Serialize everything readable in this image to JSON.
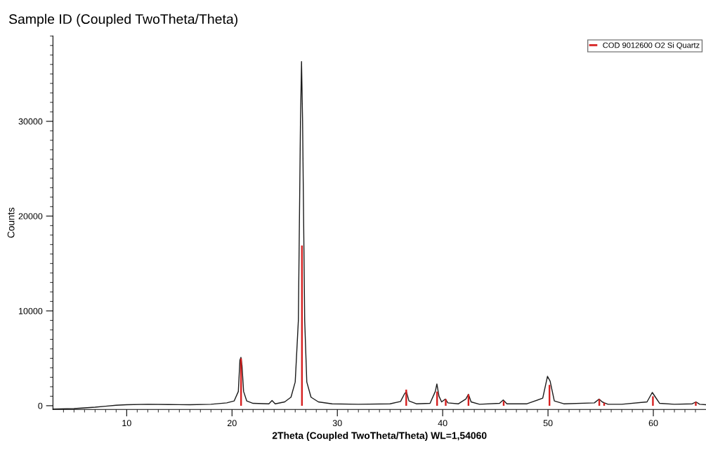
{
  "chart_data": {
    "type": "line",
    "title": "Sample ID (Coupled TwoTheta/Theta)",
    "xlabel": "2Theta (Coupled TwoTheta/Theta) WL=1,54060",
    "ylabel": "Counts",
    "xlim": [
      3,
      65
    ],
    "ylim": [
      -400,
      39000
    ],
    "xticks": [
      {
        "value": 4,
        "label": null
      },
      {
        "value": 5,
        "label": null
      },
      {
        "value": 6,
        "label": null
      },
      {
        "value": 7,
        "label": null
      },
      {
        "value": 8,
        "label": null
      },
      {
        "value": 9,
        "label": null
      },
      10,
      {
        "value": 11,
        "label": null
      },
      {
        "value": 12,
        "label": null
      },
      {
        "value": 13,
        "label": null
      },
      {
        "value": 14,
        "label": null
      },
      {
        "value": 15,
        "label": null
      },
      {
        "value": 16,
        "label": null
      },
      {
        "value": 17,
        "label": null
      },
      {
        "value": 18,
        "label": null
      },
      {
        "value": 19,
        "label": null
      },
      20,
      {
        "value": 21,
        "label": null
      },
      {
        "value": 22,
        "label": null
      },
      {
        "value": 23,
        "label": null
      },
      {
        "value": 24,
        "label": null
      },
      {
        "value": 25,
        "label": null
      },
      {
        "value": 26,
        "label": null
      },
      {
        "value": 27,
        "label": null
      },
      {
        "value": 28,
        "label": null
      },
      {
        "value": 29,
        "label": null
      },
      30,
      {
        "value": 31,
        "label": null
      },
      {
        "value": 32,
        "label": null
      },
      {
        "value": 33,
        "label": null
      },
      {
        "value": 34,
        "label": null
      },
      {
        "value": 35,
        "label": null
      },
      {
        "value": 36,
        "label": null
      },
      {
        "value": 37,
        "label": null
      },
      {
        "value": 38,
        "label": null
      },
      {
        "value": 39,
        "label": null
      },
      40,
      {
        "value": 41,
        "label": null
      },
      {
        "value": 42,
        "label": null
      },
      {
        "value": 43,
        "label": null
      },
      {
        "value": 44,
        "label": null
      },
      {
        "value": 45,
        "label": null
      },
      {
        "value": 46,
        "label": null
      },
      {
        "value": 47,
        "label": null
      },
      {
        "value": 48,
        "label": null
      },
      {
        "value": 49,
        "label": null
      },
      50,
      {
        "value": 51,
        "label": null
      },
      {
        "value": 52,
        "label": null
      },
      {
        "value": 53,
        "label": null
      },
      {
        "value": 54,
        "label": null
      },
      {
        "value": 55,
        "label": null
      },
      {
        "value": 56,
        "label": null
      },
      {
        "value": 57,
        "label": null
      },
      {
        "value": 58,
        "label": null
      },
      {
        "value": 59,
        "label": null
      },
      60,
      {
        "value": 61,
        "label": null
      },
      {
        "value": 62,
        "label": null
      },
      {
        "value": 63,
        "label": null
      },
      {
        "value": 64,
        "label": null
      }
    ],
    "yticks": [
      0,
      {
        "value": 1000,
        "label": null
      },
      {
        "value": 2000,
        "label": null
      },
      {
        "value": 3000,
        "label": null
      },
      {
        "value": 4000,
        "label": null
      },
      {
        "value": 5000,
        "label": null
      },
      {
        "value": 6000,
        "label": null
      },
      {
        "value": 7000,
        "label": null
      },
      {
        "value": 8000,
        "label": null
      },
      {
        "value": 9000,
        "label": null
      },
      10000,
      {
        "value": 11000,
        "label": null
      },
      {
        "value": 12000,
        "label": null
      },
      {
        "value": 13000,
        "label": null
      },
      {
        "value": 14000,
        "label": null
      },
      {
        "value": 15000,
        "label": null
      },
      {
        "value": 16000,
        "label": null
      },
      {
        "value": 17000,
        "label": null
      },
      {
        "value": 18000,
        "label": null
      },
      {
        "value": 19000,
        "label": null
      },
      20000,
      {
        "value": 21000,
        "label": null
      },
      {
        "value": 22000,
        "label": null
      },
      {
        "value": 23000,
        "label": null
      },
      {
        "value": 24000,
        "label": null
      },
      {
        "value": 25000,
        "label": null
      },
      {
        "value": 26000,
        "label": null
      },
      {
        "value": 27000,
        "label": null
      },
      {
        "value": 28000,
        "label": null
      },
      {
        "value": 29000,
        "label": null
      },
      30000,
      {
        "value": 31000,
        "label": null
      },
      {
        "value": 32000,
        "label": null
      },
      {
        "value": 33000,
        "label": null
      },
      {
        "value": 34000,
        "label": null
      },
      {
        "value": 35000,
        "label": null
      },
      {
        "value": 36000,
        "label": null
      },
      {
        "value": 37000,
        "label": null
      },
      {
        "value": 38000,
        "label": null
      },
      {
        "value": 39000,
        "label": null
      }
    ],
    "grid": false,
    "legend": "top right",
    "marker": "none",
    "line_style": "solid",
    "series": [
      {
        "color": "#1a1a1a",
        "x": [
          3,
          5,
          7,
          8,
          9,
          10,
          12,
          14,
          16,
          18,
          19.5,
          20.2,
          20.6,
          20.75,
          20.85,
          20.95,
          21.1,
          21.4,
          22,
          23.5,
          23.8,
          24.1,
          25,
          25.6,
          26.0,
          26.3,
          26.5,
          26.6,
          26.7,
          26.9,
          27.1,
          27.5,
          28.2,
          29.5,
          32,
          35,
          36,
          36.35,
          36.55,
          36.8,
          37.5,
          38.8,
          39.3,
          39.45,
          39.65,
          39.9,
          40.25,
          40.5,
          41.5,
          42.2,
          42.45,
          42.7,
          43.5,
          45.4,
          45.75,
          46.1,
          48,
          49.5,
          49.95,
          50.2,
          50.6,
          51.5,
          54.4,
          54.85,
          55.15,
          55.35,
          55.7,
          57,
          59.4,
          59.9,
          60.2,
          60.6,
          62,
          63.7,
          64.05,
          64.4,
          65
        ],
        "values": [
          -350,
          -300,
          -150,
          -50,
          50,
          100,
          150,
          120,
          100,
          150,
          300,
          500,
          1500,
          4800,
          5100,
          4200,
          1500,
          500,
          250,
          200,
          550,
          200,
          400,
          900,
          2500,
          9000,
          30000,
          36300,
          30000,
          9000,
          2500,
          900,
          400,
          200,
          150,
          200,
          450,
          1200,
          1500,
          500,
          200,
          250,
          1500,
          2300,
          1000,
          400,
          700,
          300,
          200,
          700,
          1200,
          400,
          150,
          250,
          600,
          200,
          200,
          800,
          3100,
          2600,
          500,
          200,
          300,
          700,
          400,
          300,
          150,
          150,
          400,
          1400,
          900,
          250,
          150,
          200,
          400,
          150,
          100
        ]
      },
      {
        "type": "bar",
        "name": "COD 9012600 O2 Si Quartz",
        "color": "#d62020",
        "x": [
          20.86,
          26.64,
          36.54,
          39.47,
          40.29,
          42.45,
          45.79,
          50.14,
          54.87,
          55.33,
          59.96,
          64.03
        ],
        "values": [
          5000,
          16900,
          1700,
          1500,
          700,
          1200,
          500,
          2200,
          700,
          300,
          1000,
          400
        ]
      }
    ]
  }
}
